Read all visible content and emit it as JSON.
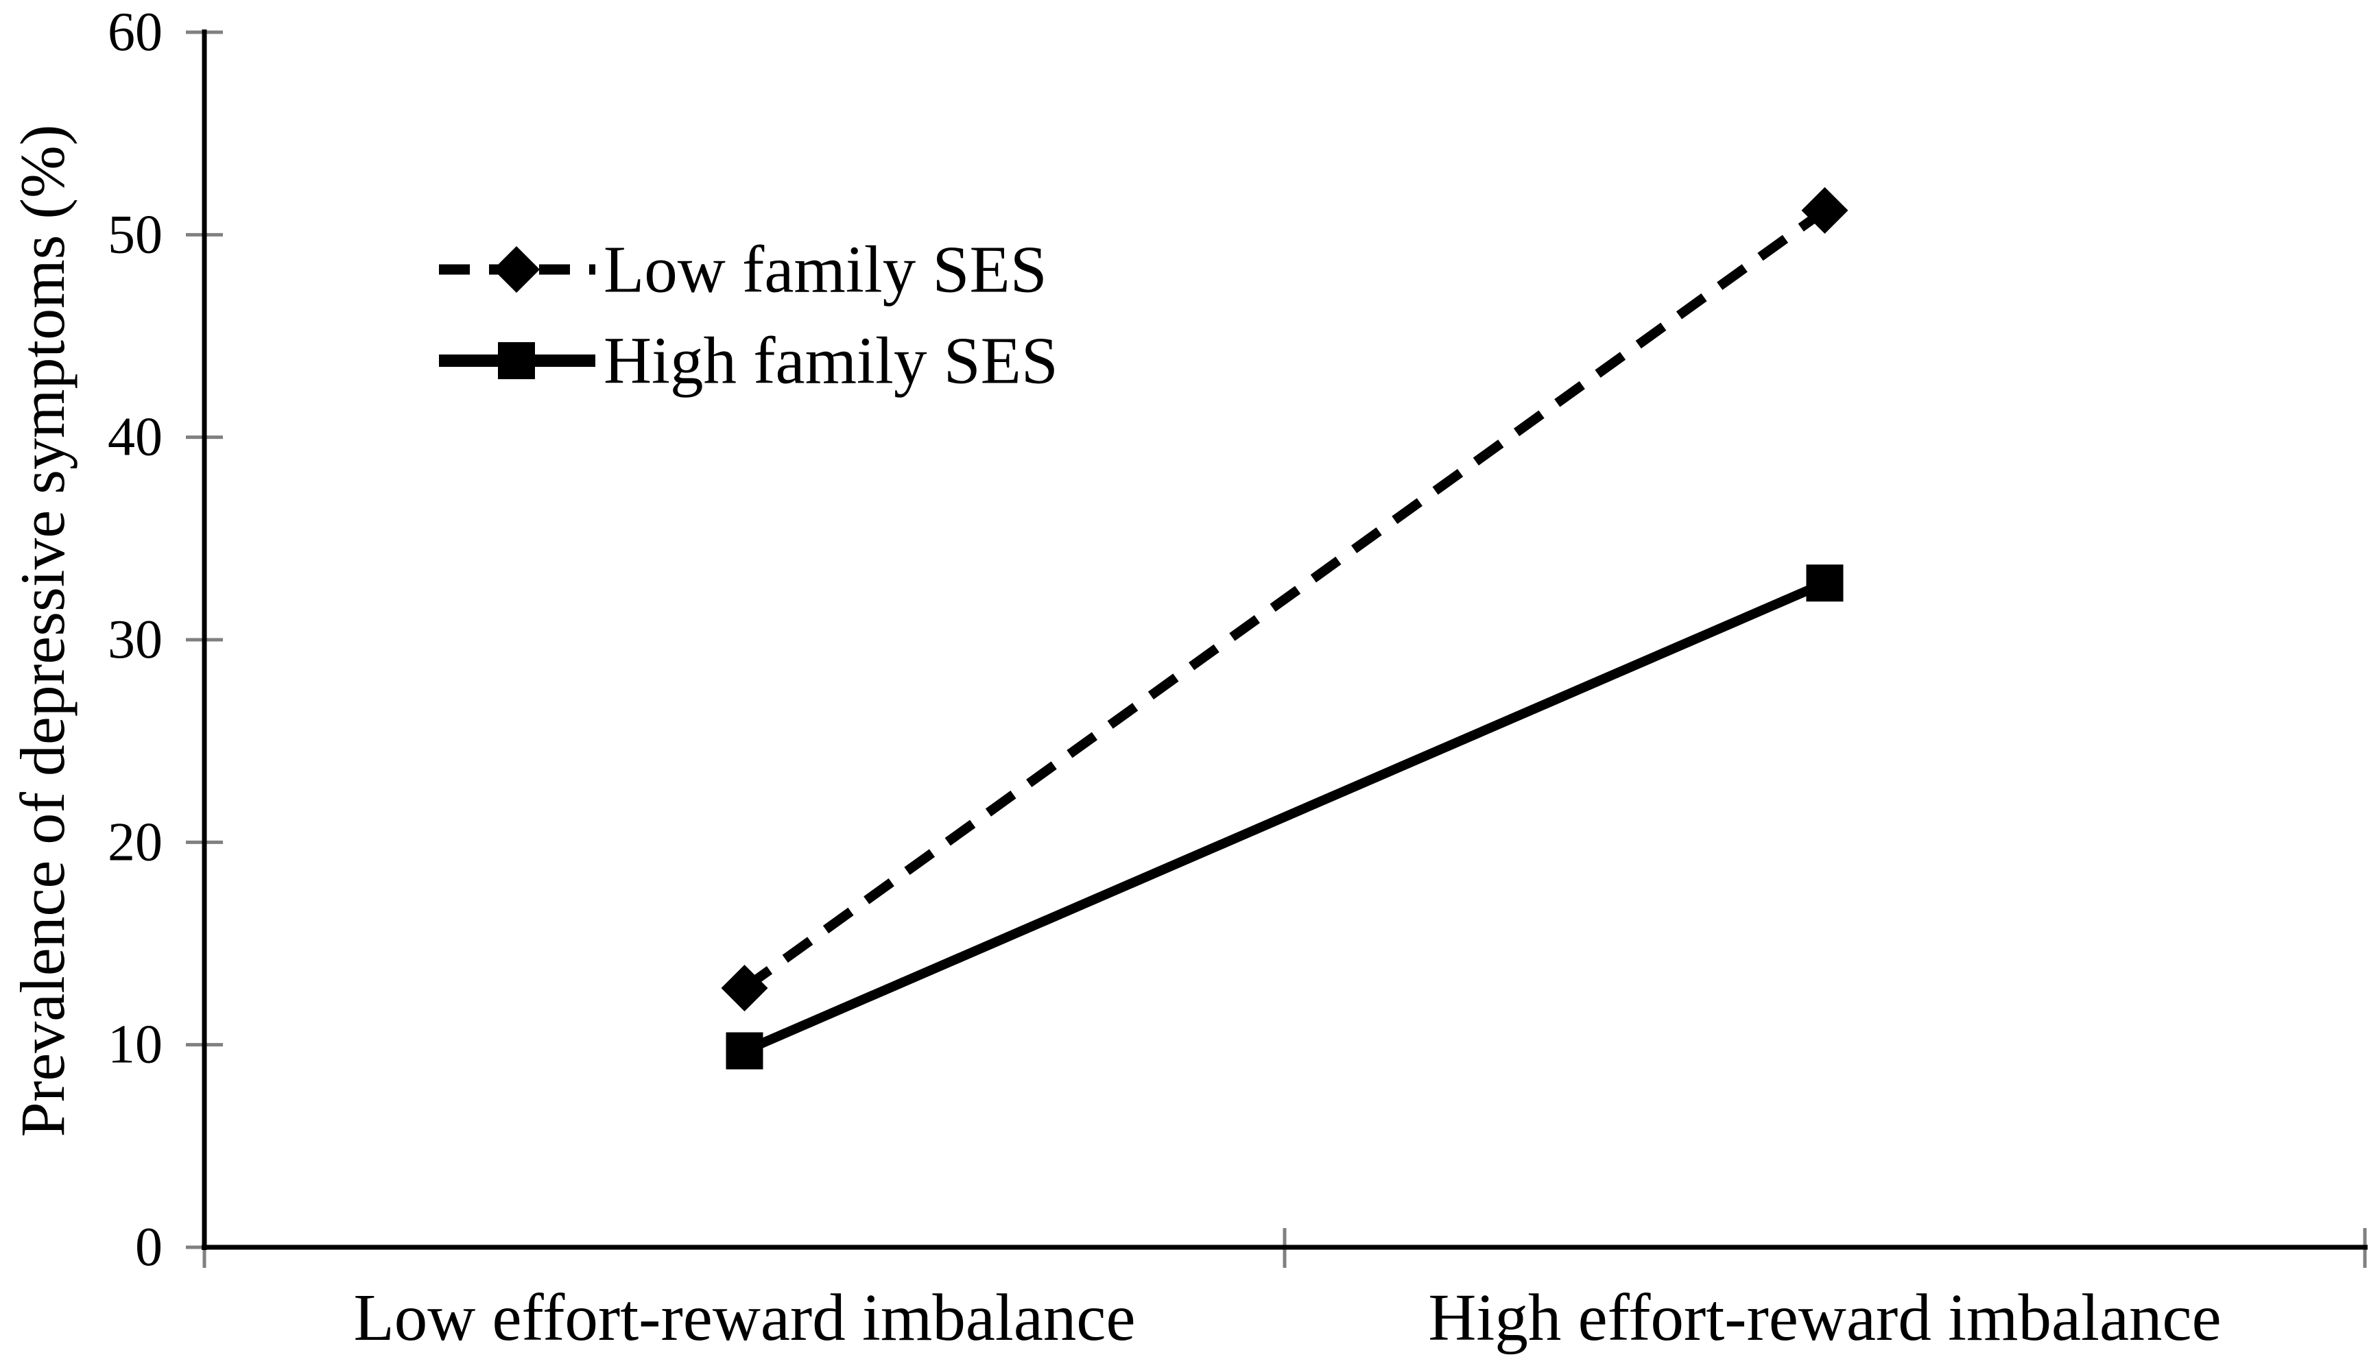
{
  "figure": {
    "background": "#ffffff"
  },
  "chart_data": {
    "type": "line",
    "title": "",
    "xlabel": "",
    "ylabel": "Prevalence of depressive symptoms (%)",
    "categories": [
      "Low effort-reward imbalance",
      "High effort-reward imbalance"
    ],
    "series": [
      {
        "name": "Low family SES",
        "values": [
          12.8,
          51.2
        ],
        "line_style": "dashed",
        "marker": "diamond",
        "color": "#000000"
      },
      {
        "name": "High family SES",
        "values": [
          9.7,
          32.8
        ],
        "line_style": "solid",
        "marker": "square",
        "color": "#000000"
      }
    ],
    "ylim": [
      0,
      60
    ],
    "yticks": [
      0,
      10,
      20,
      30,
      40,
      50,
      60
    ],
    "grid": false,
    "legend_position": "upper-left-inside",
    "colors": {
      "axis": "#000000",
      "tick": "#808080",
      "text": "#000000",
      "background": "#ffffff"
    }
  }
}
